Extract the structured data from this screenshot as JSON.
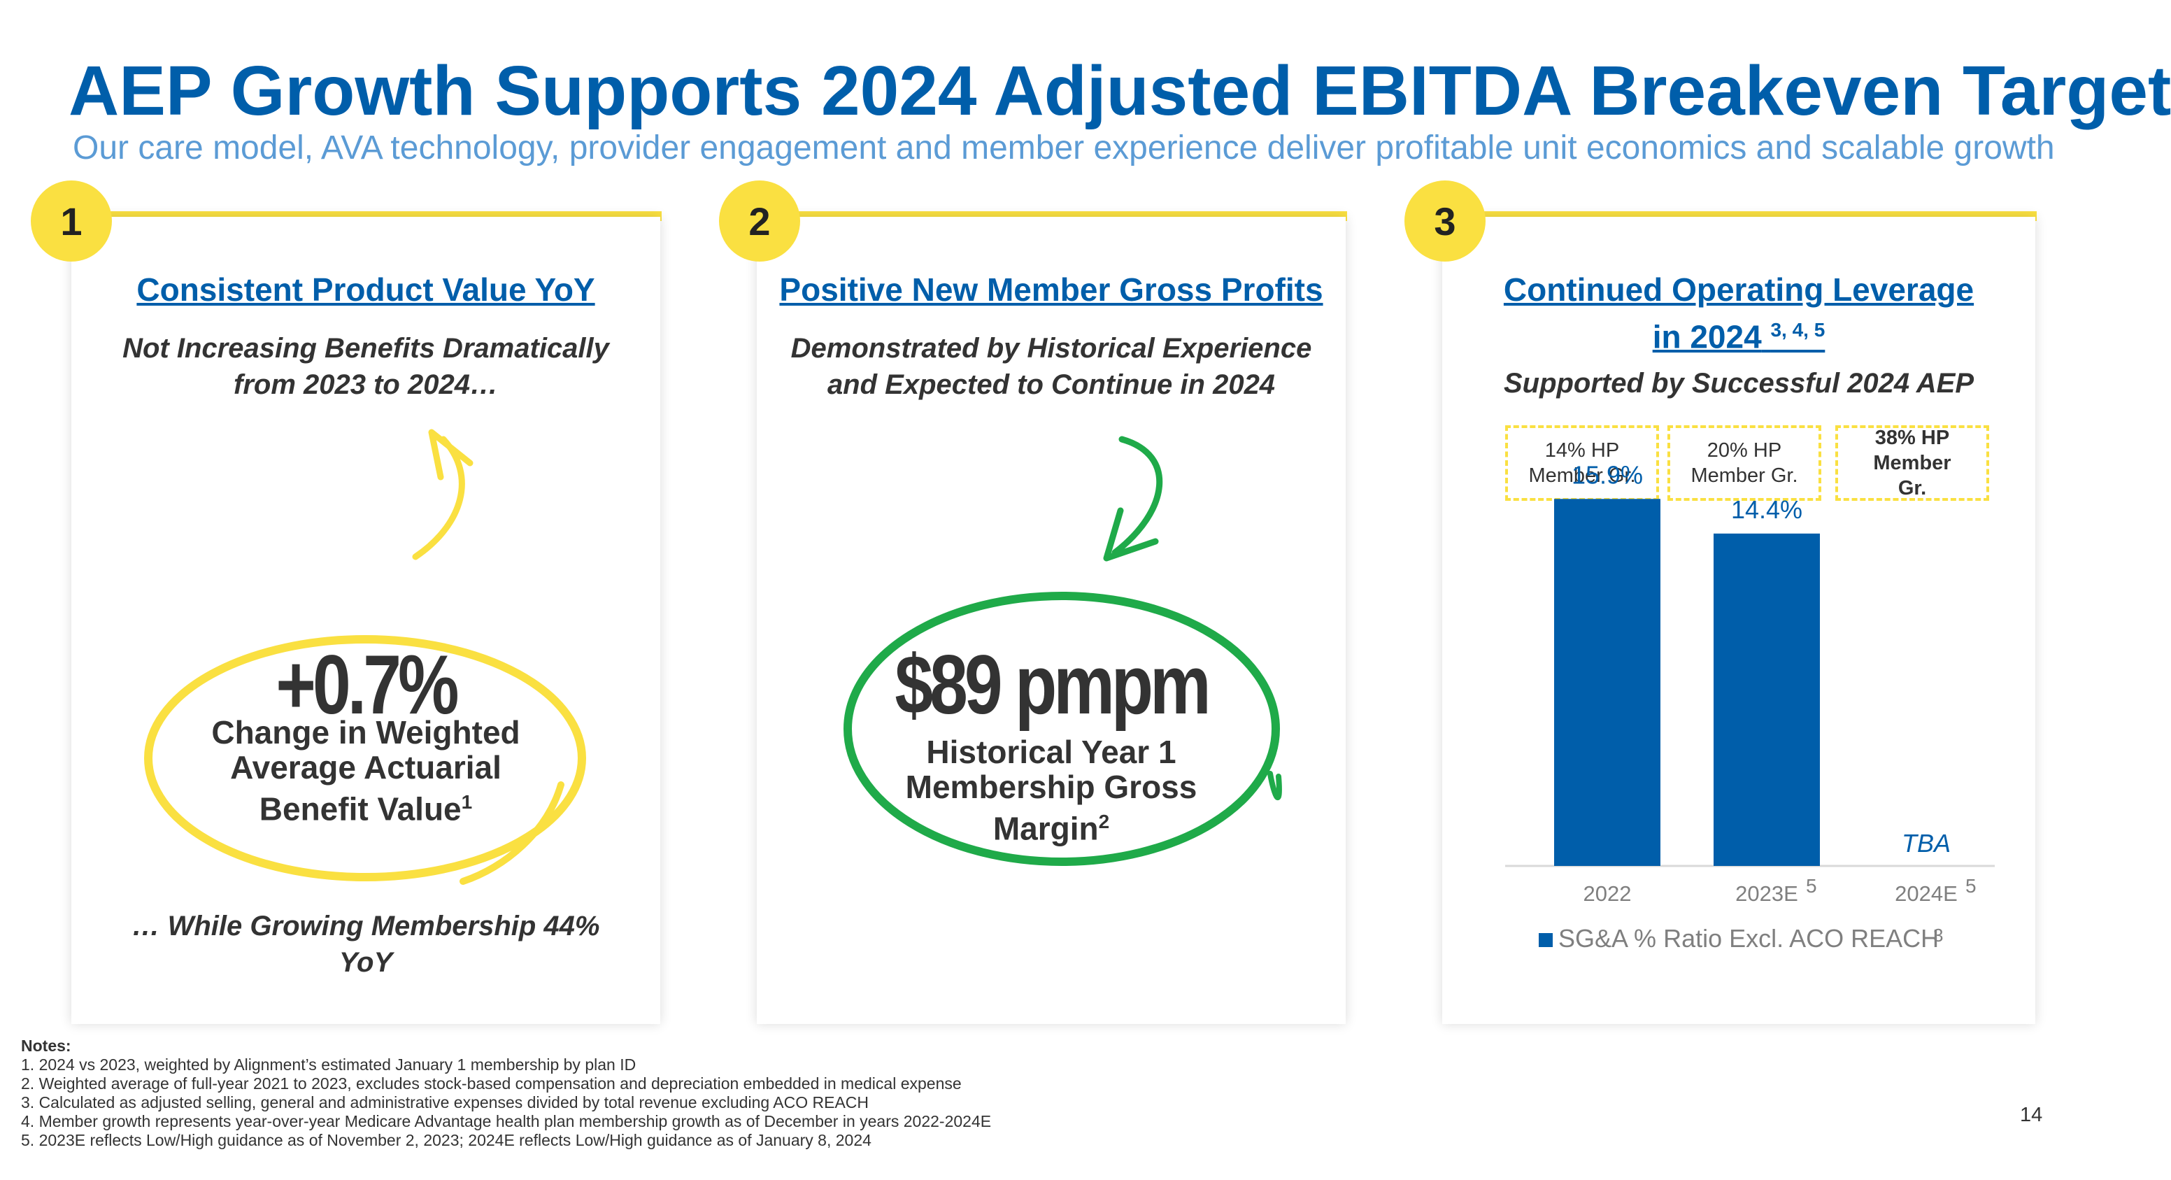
{
  "title": "AEP Growth Supports 2024 Adjusted EBITDA Breakeven Target",
  "subtitle": "Our care model, AVA technology, provider engagement and member experience deliver profitable unit economics and scalable growth",
  "colors": {
    "brand_blue": "#005EAA",
    "accent_yellow": "#FAE041",
    "accent_green": "#1FAA49",
    "light_blue": "#5B9BD5"
  },
  "panel1": {
    "number": "1",
    "heading": "Consistent Product Value YoY",
    "sub_line1": "Not Increasing Benefits Dramatically",
    "sub_line2": "from 2023 to 2024…",
    "big_value": "+0.7%",
    "label_line1": "Change in Weighted",
    "label_line2": "Average Actuarial",
    "label_line3": "Benefit Value",
    "label_sup": "1",
    "footer_line1": "… While Growing Membership 44%",
    "footer_line2": "YoY"
  },
  "panel2": {
    "number": "2",
    "heading": "Positive New Member Gross Profits",
    "sub_line1": "Demonstrated by Historical Experience",
    "sub_line2": "and Expected to Continue in 2024",
    "big_value": "$89 pmpm",
    "label_line1": "Historical Year 1",
    "label_line2": "Membership Gross",
    "label_line3": "Margin",
    "label_sup": "2"
  },
  "panel3": {
    "number": "3",
    "heading_line1": "Continued Operating Leverage",
    "heading_line2": "in 2024",
    "heading_sup": "3, 4, 5",
    "sub": "Supported by Successful 2024 AEP",
    "hp_boxes": [
      {
        "line1": "14% HP",
        "line2": "Member Gr."
      },
      {
        "line1": "20% HP",
        "line2": "Member Gr."
      },
      {
        "line1": "38% HP",
        "line2": "Member",
        "line3": "Gr."
      }
    ]
  },
  "chart_data": {
    "type": "bar",
    "categories": [
      "2022",
      "2023E",
      "2024E"
    ],
    "category_sups": [
      "",
      "5",
      "5"
    ],
    "series": [
      {
        "name": "SG&A % Ratio Excl. ACO REACH",
        "values": [
          15.9,
          14.4,
          null
        ]
      }
    ],
    "data_labels": [
      "15.9%",
      "14.4%",
      "TBA"
    ],
    "legend_sup": "3",
    "ylim": [
      0,
      20
    ]
  },
  "notes": {
    "heading": "Notes:",
    "items": [
      "1. 2024 vs 2023, weighted by Alignment’s estimated January 1 membership by plan ID",
      "2. Weighted average of full-year 2021 to 2023, excludes stock-based compensation and depreciation embedded in medical expense",
      "3. Calculated as adjusted selling, general and administrative expenses divided by total revenue excluding ACO REACH",
      "4. Member growth represents year-over-year Medicare Advantage health plan membership growth as of December in years 2022-2024E",
      "5. 2023E reflects Low/High guidance as of November 2, 2023; 2024E reflects Low/High guidance as of January 8, 2024"
    ]
  },
  "page_number": "14"
}
